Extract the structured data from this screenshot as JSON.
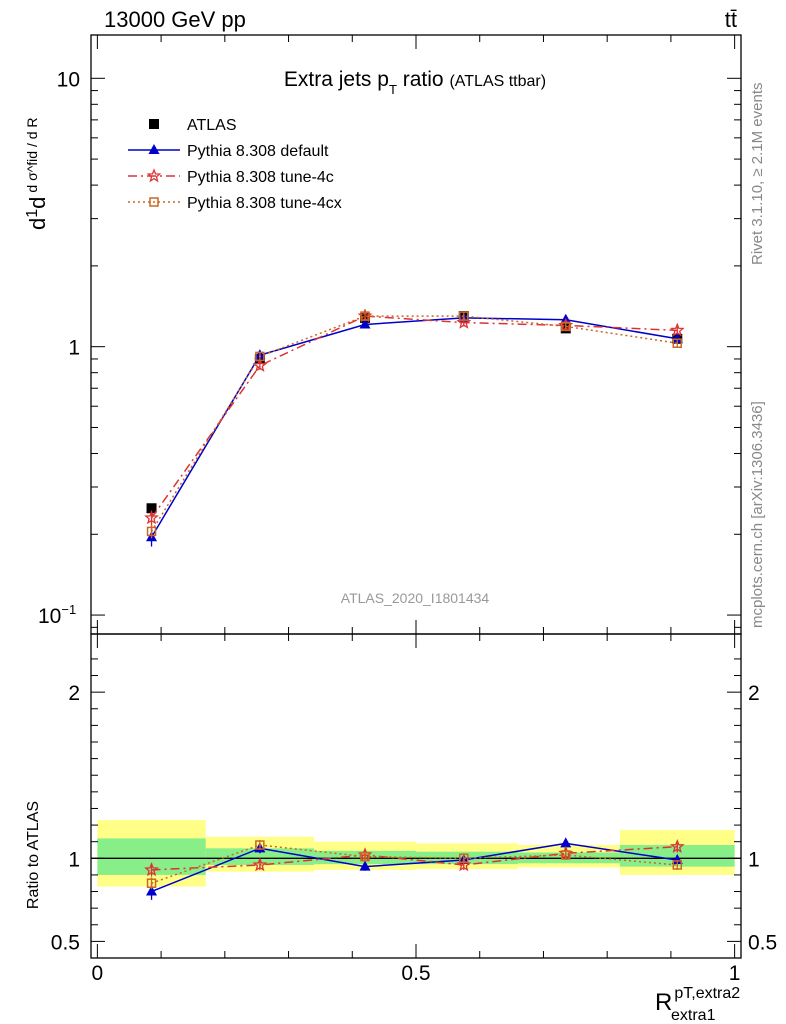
{
  "header": {
    "energy_label": "13000 GeV pp",
    "process_label": "tt̄"
  },
  "side_labels": {
    "rivet": "Rivet 3.1.10, ≥ 2.1M events",
    "mcplots": "mcplots.cern.ch [arXiv:1306.3436]"
  },
  "analysis_id": "ATLAS_2020_I1801434",
  "chart_data": [
    {
      "type": "line",
      "title": "Extra jets p",
      "title_sub": "T",
      "title_tail": "ratio",
      "title_note": "(ATLAS ttbar)",
      "ylabel": "d σ^fid / d R",
      "yscale": "log",
      "ylim": [
        0.085,
        14.5
      ],
      "xlim": [
        -0.01,
        1.01
      ],
      "y_ticks": [
        {
          "v": 0.1,
          "label": "10",
          "sup": "−1"
        },
        {
          "v": 1,
          "label": "1",
          "sup": ""
        },
        {
          "v": 10,
          "label": "10",
          "sup": ""
        }
      ],
      "legend": {
        "placement": "top-left"
      },
      "series": [
        {
          "name": "ATLAS",
          "color": "#000000",
          "marker": "square",
          "line": "none",
          "x": [
            0.085,
            0.255,
            0.42,
            0.575,
            0.735,
            0.91
          ],
          "y": [
            0.25,
            0.9,
            1.28,
            1.3,
            1.17,
            1.07
          ],
          "err": [
            0.01,
            0.02,
            0.03,
            0.03,
            0.03,
            0.03
          ]
        },
        {
          "name": "Pythia 8.308 default",
          "color": "#0000cc",
          "marker": "triangle",
          "line": "solid",
          "x": [
            0.085,
            0.255,
            0.42,
            0.575,
            0.735,
            0.91
          ],
          "y": [
            0.195,
            0.93,
            1.21,
            1.28,
            1.26,
            1.07
          ],
          "err": [
            0.015,
            0.03,
            0.03,
            0.03,
            0.05,
            0.04
          ]
        },
        {
          "name": "Pythia 8.308 tune-4c",
          "color": "#dd3333",
          "marker": "star",
          "line": "dashdot",
          "x": [
            0.085,
            0.255,
            0.42,
            0.575,
            0.735,
            0.91
          ],
          "y": [
            0.23,
            0.85,
            1.3,
            1.23,
            1.2,
            1.15
          ],
          "err": [
            0.015,
            0.03,
            0.04,
            0.04,
            0.04,
            0.04
          ]
        },
        {
          "name": "Pythia 8.308 tune-4cx",
          "color": "#cc6622",
          "marker": "opensquare",
          "line": "dotted",
          "x": [
            0.085,
            0.255,
            0.42,
            0.575,
            0.735,
            0.91
          ],
          "y": [
            0.205,
            0.92,
            1.3,
            1.3,
            1.19,
            1.03
          ],
          "err": [
            0.012,
            0.03,
            0.04,
            0.04,
            0.04,
            0.04
          ]
        }
      ]
    },
    {
      "type": "line",
      "ylabel": "Ratio to ATLAS",
      "xlabel_main": "R",
      "xlabel_sup": "pT,extra2",
      "xlabel_sub": "extra1",
      "ylim": [
        0.4,
        2.35
      ],
      "xlim": [
        -0.01,
        1.01
      ],
      "y_ticks": [
        {
          "v": 0.5,
          "label": "0.5"
        },
        {
          "v": 1,
          "label": "1"
        },
        {
          "v": 2,
          "label": "2"
        }
      ],
      "x_ticks": [
        {
          "v": 0,
          "label": "0"
        },
        {
          "v": 0.5,
          "label": "0.5"
        },
        {
          "v": 1,
          "label": "1"
        }
      ],
      "bands": [
        {
          "x0": 0.0,
          "x1": 0.17,
          "yellow": [
            0.83,
            1.23
          ],
          "green": [
            0.9,
            1.12
          ]
        },
        {
          "x0": 0.17,
          "x1": 0.34,
          "yellow": [
            0.92,
            1.13
          ],
          "green": [
            0.96,
            1.06
          ]
        },
        {
          "x0": 0.34,
          "x1": 0.5,
          "yellow": [
            0.93,
            1.1
          ],
          "green": [
            0.965,
            1.045
          ]
        },
        {
          "x0": 0.5,
          "x1": 0.66,
          "yellow": [
            0.935,
            1.09
          ],
          "green": [
            0.965,
            1.04
          ]
        },
        {
          "x0": 0.66,
          "x1": 0.82,
          "yellow": [
            0.945,
            1.08
          ],
          "green": [
            0.97,
            1.035
          ]
        },
        {
          "x0": 0.82,
          "x1": 1.0,
          "yellow": [
            0.9,
            1.17
          ],
          "green": [
            0.95,
            1.08
          ]
        }
      ],
      "series": [
        {
          "name": "Pythia 8.308 default",
          "color": "#0000cc",
          "marker": "triangle",
          "line": "solid",
          "x": [
            0.085,
            0.255,
            0.42,
            0.575,
            0.735,
            0.91
          ],
          "y": [
            0.8,
            1.06,
            0.95,
            0.99,
            1.09,
            0.99
          ],
          "err": [
            0.05,
            0.03,
            0.025,
            0.025,
            0.03,
            0.03
          ]
        },
        {
          "name": "Pythia 8.308 tune-4c",
          "color": "#dd3333",
          "marker": "star",
          "line": "dashdot",
          "x": [
            0.085,
            0.255,
            0.42,
            0.575,
            0.735,
            0.91
          ],
          "y": [
            0.93,
            0.96,
            1.02,
            0.96,
            1.03,
            1.07
          ],
          "err": [
            0.04,
            0.03,
            0.03,
            0.03,
            0.03,
            0.035
          ]
        },
        {
          "name": "Pythia 8.308 tune-4cx",
          "color": "#cc6622",
          "marker": "opensquare",
          "line": "dotted",
          "x": [
            0.085,
            0.255,
            0.42,
            0.575,
            0.735,
            0.91
          ],
          "y": [
            0.85,
            1.08,
            1.01,
            1.0,
            1.02,
            0.96
          ],
          "err": [
            0.035,
            0.03,
            0.03,
            0.03,
            0.03,
            0.03
          ]
        }
      ]
    }
  ]
}
